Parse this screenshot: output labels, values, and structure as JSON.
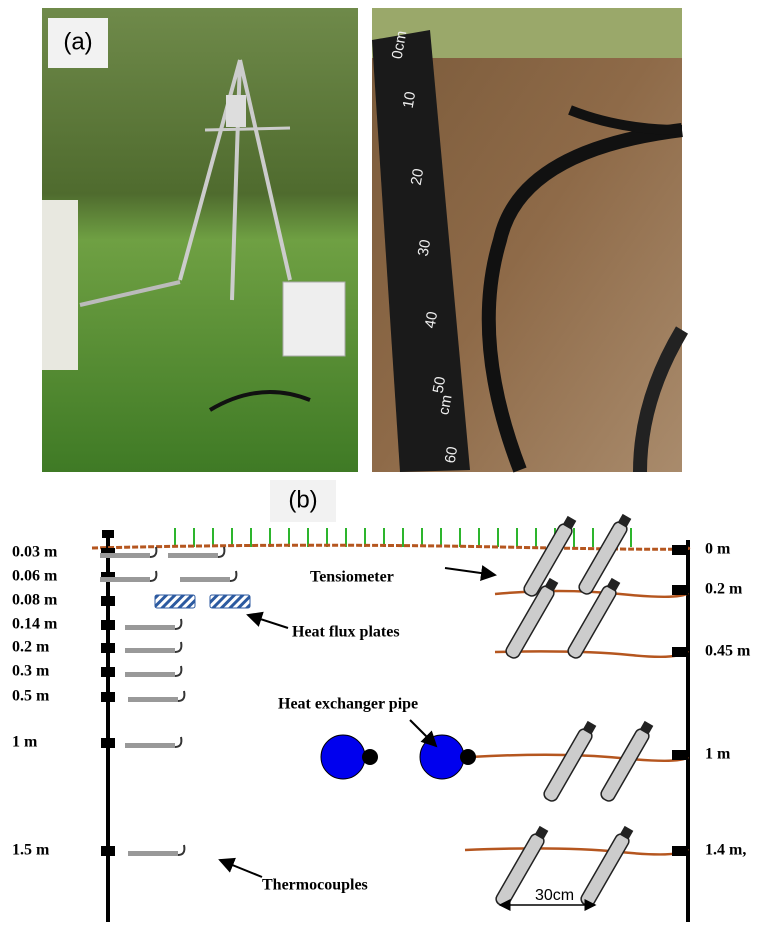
{
  "panel_a": {
    "label": "(a)",
    "ruler_labels": [
      "0cm",
      "10",
      "20",
      "30",
      "40",
      "50",
      "cm",
      "60"
    ]
  },
  "panel_b": {
    "label": "(b)",
    "left_depths": [
      "0.03 m",
      "0.06 m",
      "0.08 m",
      "0.14 m",
      "0.2 m",
      "0.3 m",
      "0.5 m",
      "1 m",
      "1.5 m"
    ],
    "right_depths": [
      "0 m",
      "0.2 m",
      "0.45 m",
      "1 m",
      "1.4 m,"
    ],
    "annotations": {
      "tensiometer": "Tensiometer",
      "heat_flux": "Heat flux plates",
      "heat_exchanger": "Heat exchanger pipe",
      "thermocouples": "Thermocouples"
    },
    "scale": "30cm"
  }
}
